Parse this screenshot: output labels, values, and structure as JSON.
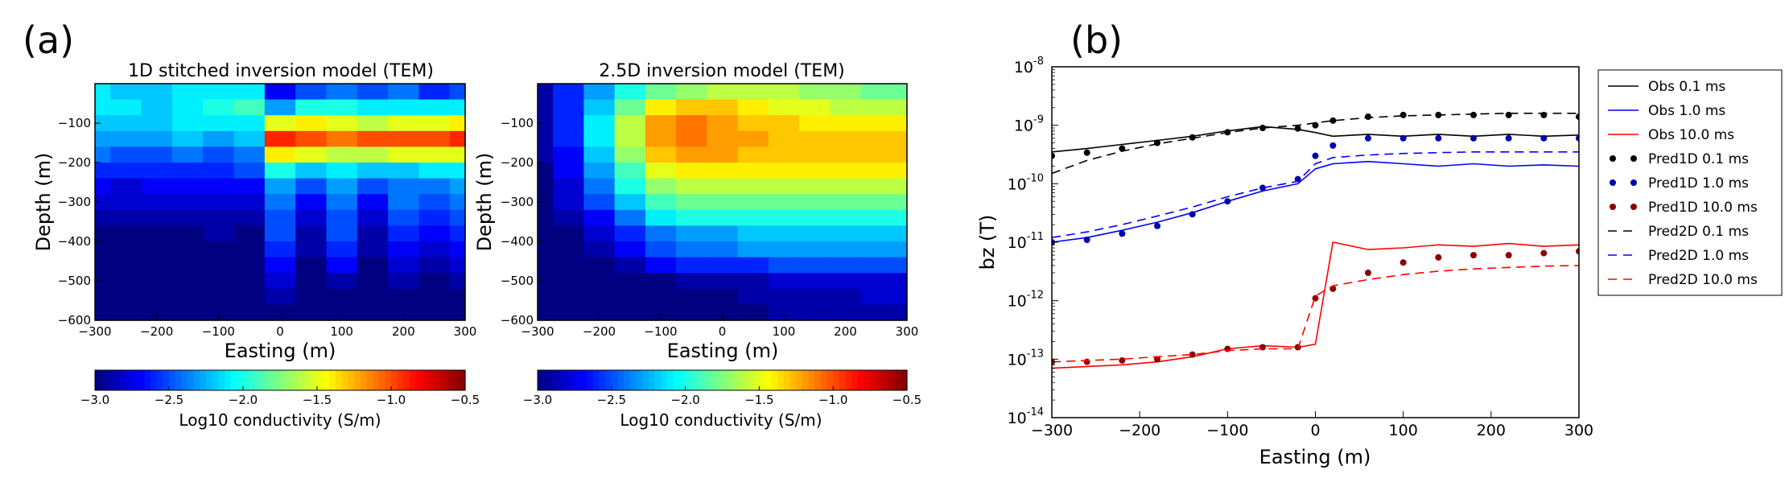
{
  "panel_labels": [
    "(a)",
    "(b)"
  ],
  "chart_data": [
    {
      "type": "heatmap",
      "panel": "(a)",
      "title": "1D stitched inversion model (TEM)",
      "xlabel": "Easting (m)",
      "ylabel": "Depth (m)",
      "xlim": [
        -300,
        300
      ],
      "ylim": [
        -600,
        0
      ],
      "xticks": [
        "−300",
        "−200",
        "−100",
        "0",
        "100",
        "200",
        "300"
      ],
      "yticks": [
        "−100",
        "−200",
        "−300",
        "−400",
        "−500",
        "−600"
      ],
      "colorbar": {
        "label": "Log10 conductivity (S/m)",
        "range": [
          -3.0,
          -0.5
        ],
        "ticks": [
          "−3.0",
          "−2.5",
          "−2.0",
          "−1.5",
          "−1.0",
          "−0.5"
        ],
        "colormap": "jet"
      },
      "depth_bins_m": [
        -20,
        -60,
        -100,
        -140,
        -180,
        -220,
        -260,
        -300,
        -340,
        -380,
        -420,
        -460,
        -500,
        -540,
        -580
      ],
      "x_bins_m": [
        -300,
        -250,
        -200,
        -150,
        -100,
        -50,
        0,
        50,
        100,
        150,
        200,
        250,
        300
      ],
      "log10_conductivity": [
        [
          -2.1,
          -2.2,
          -2.2,
          -2.1,
          -2.1,
          -2.1,
          -2.7,
          -2.5,
          -2.4,
          -2.5,
          -2.4,
          -2.6,
          -2.5
        ],
        [
          -2.1,
          -2.1,
          -2.2,
          -2.1,
          -2.0,
          -1.9,
          -2.3,
          -2.0,
          -2.0,
          -2.1,
          -2.1,
          -2.1,
          -2.1
        ],
        [
          -2.2,
          -2.2,
          -2.2,
          -2.1,
          -2.1,
          -2.1,
          -1.5,
          -1.4,
          -1.5,
          -1.6,
          -1.5,
          -1.5,
          -1.4
        ],
        [
          -2.3,
          -2.3,
          -2.3,
          -2.2,
          -2.3,
          -2.2,
          -0.9,
          -1.0,
          -1.1,
          -1.0,
          -1.0,
          -1.0,
          -0.9
        ],
        [
          -2.4,
          -2.5,
          -2.5,
          -2.4,
          -2.5,
          -2.4,
          -1.4,
          -1.5,
          -1.6,
          -1.6,
          -1.5,
          -1.5,
          -1.5
        ],
        [
          -2.6,
          -2.6,
          -2.6,
          -2.6,
          -2.6,
          -2.5,
          -2.0,
          -2.2,
          -2.1,
          -2.2,
          -2.2,
          -2.1,
          -2.1
        ],
        [
          -2.7,
          -2.8,
          -2.7,
          -2.7,
          -2.7,
          -2.7,
          -2.3,
          -2.5,
          -2.3,
          -2.5,
          -2.4,
          -2.4,
          -2.3
        ],
        [
          -2.8,
          -2.8,
          -2.8,
          -2.8,
          -2.8,
          -2.8,
          -2.4,
          -2.7,
          -2.4,
          -2.7,
          -2.4,
          -2.5,
          -2.4
        ],
        [
          -2.9,
          -2.9,
          -2.9,
          -2.9,
          -2.9,
          -2.9,
          -2.5,
          -2.8,
          -2.5,
          -2.8,
          -2.5,
          -2.6,
          -2.5
        ],
        [
          -3.0,
          -3.0,
          -3.0,
          -3.0,
          -2.9,
          -3.0,
          -2.5,
          -2.9,
          -2.5,
          -2.9,
          -2.6,
          -2.7,
          -2.6
        ],
        [
          -3.0,
          -3.0,
          -3.0,
          -3.0,
          -3.0,
          -3.0,
          -2.6,
          -2.9,
          -2.6,
          -2.9,
          -2.7,
          -2.8,
          -2.7
        ],
        [
          -3.0,
          -3.0,
          -3.0,
          -3.0,
          -3.0,
          -3.0,
          -2.7,
          -3.0,
          -2.7,
          -3.0,
          -2.8,
          -2.9,
          -2.8
        ],
        [
          -3.0,
          -3.0,
          -3.0,
          -3.0,
          -3.0,
          -3.0,
          -2.8,
          -3.0,
          -2.9,
          -3.0,
          -2.9,
          -3.0,
          -2.9
        ],
        [
          -3.0,
          -3.0,
          -3.0,
          -3.0,
          -3.0,
          -3.0,
          -2.9,
          -3.0,
          -3.0,
          -3.0,
          -3.0,
          -3.0,
          -3.0
        ],
        [
          -3.0,
          -3.0,
          -3.0,
          -3.0,
          -3.0,
          -3.0,
          -3.0,
          -3.0,
          -3.0,
          -3.0,
          -3.0,
          -3.0,
          -3.0
        ]
      ]
    },
    {
      "type": "heatmap",
      "panel": "(a)",
      "title": "2.5D inversion model (TEM)",
      "xlabel": "Easting (m)",
      "ylabel": "Depth (m)",
      "xlim": [
        -300,
        300
      ],
      "ylim": [
        -600,
        0
      ],
      "xticks": [
        "−300",
        "−200",
        "−100",
        "0",
        "100",
        "200",
        "300"
      ],
      "yticks": [
        "−100",
        "−200",
        "−300",
        "−400",
        "−500",
        "−600"
      ],
      "colorbar": {
        "label": "Log10 conductivity (S/m)",
        "range": [
          -3.0,
          -0.5
        ],
        "ticks": [
          "−3.0",
          "−2.5",
          "−2.0",
          "−1.5",
          "−1.0",
          "−0.5"
        ],
        "colormap": "jet"
      },
      "depth_bins_m": [
        -20,
        -60,
        -100,
        -140,
        -180,
        -220,
        -260,
        -300,
        -340,
        -380,
        -420,
        -460,
        -500,
        -540,
        -580
      ],
      "x_bins_m": [
        -300,
        -250,
        -200,
        -150,
        -100,
        -50,
        0,
        50,
        100,
        150,
        200,
        250,
        300
      ],
      "log10_conductivity": [
        [
          -2.9,
          -2.6,
          -2.3,
          -2.0,
          -1.8,
          -1.7,
          -1.6,
          -1.6,
          -1.6,
          -1.7,
          -1.7,
          -1.8,
          -1.8
        ],
        [
          -2.9,
          -2.6,
          -2.2,
          -1.8,
          -1.4,
          -1.3,
          -1.3,
          -1.4,
          -1.5,
          -1.5,
          -1.6,
          -1.6,
          -1.6
        ],
        [
          -2.9,
          -2.6,
          -2.1,
          -1.6,
          -1.2,
          -1.1,
          -1.2,
          -1.3,
          -1.3,
          -1.4,
          -1.4,
          -1.4,
          -1.4
        ],
        [
          -2.9,
          -2.6,
          -2.1,
          -1.6,
          -1.2,
          -1.1,
          -1.2,
          -1.2,
          -1.3,
          -1.3,
          -1.3,
          -1.3,
          -1.3
        ],
        [
          -2.9,
          -2.7,
          -2.2,
          -1.7,
          -1.3,
          -1.2,
          -1.2,
          -1.3,
          -1.3,
          -1.3,
          -1.3,
          -1.3,
          -1.3
        ],
        [
          -3.0,
          -2.7,
          -2.3,
          -1.9,
          -1.5,
          -1.4,
          -1.4,
          -1.4,
          -1.4,
          -1.4,
          -1.4,
          -1.4,
          -1.4
        ],
        [
          -3.0,
          -2.8,
          -2.4,
          -2.0,
          -1.7,
          -1.6,
          -1.6,
          -1.6,
          -1.6,
          -1.6,
          -1.6,
          -1.6,
          -1.6
        ],
        [
          -3.0,
          -2.8,
          -2.5,
          -2.2,
          -1.9,
          -1.8,
          -1.8,
          -1.8,
          -1.8,
          -1.8,
          -1.8,
          -1.8,
          -1.8
        ],
        [
          -3.0,
          -2.9,
          -2.7,
          -2.4,
          -2.1,
          -2.0,
          -2.0,
          -2.0,
          -2.0,
          -2.0,
          -2.0,
          -2.0,
          -2.0
        ],
        [
          -3.0,
          -3.0,
          -2.8,
          -2.6,
          -2.4,
          -2.3,
          -2.3,
          -2.2,
          -2.2,
          -2.2,
          -2.2,
          -2.2,
          -2.2
        ],
        [
          -3.0,
          -3.0,
          -2.9,
          -2.7,
          -2.5,
          -2.4,
          -2.4,
          -2.3,
          -2.3,
          -2.3,
          -2.3,
          -2.3,
          -2.3
        ],
        [
          -3.0,
          -3.0,
          -3.0,
          -2.9,
          -2.7,
          -2.6,
          -2.6,
          -2.6,
          -2.5,
          -2.5,
          -2.5,
          -2.5,
          -2.5
        ],
        [
          -3.0,
          -3.0,
          -3.0,
          -3.0,
          -3.0,
          -2.9,
          -2.9,
          -2.9,
          -2.8,
          -2.8,
          -2.8,
          -2.8,
          -2.8
        ],
        [
          -3.0,
          -3.0,
          -3.0,
          -3.0,
          -3.0,
          -3.0,
          -3.0,
          -2.9,
          -2.9,
          -2.9,
          -2.9,
          -2.8,
          -2.8
        ],
        [
          -3.0,
          -3.0,
          -3.0,
          -3.0,
          -3.0,
          -3.0,
          -3.0,
          -3.0,
          -2.9,
          -2.9,
          -2.9,
          -2.9,
          -2.9
        ]
      ]
    },
    {
      "type": "line",
      "panel": "(b)",
      "xlabel": "Easting (m)",
      "ylabel": "bz (T)",
      "xlim": [
        -300,
        300
      ],
      "ylim": [
        1e-14,
        1e-08
      ],
      "yscale": "log",
      "xticks": [
        "−300",
        "−200",
        "−100",
        "0",
        "100",
        "200",
        "300"
      ],
      "yticks": [
        {
          "base": "10",
          "exp": "-8"
        },
        {
          "base": "10",
          "exp": "-9"
        },
        {
          "base": "10",
          "exp": "-10"
        },
        {
          "base": "10",
          "exp": "-11"
        },
        {
          "base": "10",
          "exp": "-12"
        },
        {
          "base": "10",
          "exp": "-13"
        },
        {
          "base": "10",
          "exp": "-14"
        }
      ],
      "legend_position": "outside-right",
      "x": [
        -300,
        -260,
        -220,
        -180,
        -140,
        -100,
        -60,
        -20,
        0,
        20,
        60,
        100,
        140,
        180,
        220,
        260,
        300
      ],
      "series": [
        {
          "name": "Obs 0.1 ms",
          "style": "solid",
          "color": "#000000",
          "values": [
            3.5e-10,
            4e-10,
            4.7e-10,
            5.5e-10,
            6.5e-10,
            8e-10,
            9.5e-10,
            8.5e-10,
            7.5e-10,
            6.5e-10,
            7e-10,
            6.5e-10,
            7e-10,
            6.5e-10,
            7e-10,
            6.5e-10,
            6.8e-10
          ]
        },
        {
          "name": "Obs 1.0 ms",
          "style": "solid",
          "color": "#0000ff",
          "values": [
            1e-11,
            1.2e-11,
            1.6e-11,
            2.2e-11,
            3.2e-11,
            5e-11,
            7.5e-11,
            1e-10,
            1.8e-10,
            2.2e-10,
            2.4e-10,
            2.2e-10,
            2e-10,
            2.2e-10,
            2e-10,
            2.1e-10,
            2e-10
          ]
        },
        {
          "name": "Obs 10.0 ms",
          "style": "solid",
          "color": "#ff0000",
          "values": [
            7e-14,
            7.5e-14,
            8e-14,
            9e-14,
            1.1e-13,
            1.5e-13,
            1.7e-13,
            1.6e-13,
            1.8e-13,
            1e-11,
            7.5e-12,
            8e-12,
            9e-12,
            8.5e-12,
            9.5e-12,
            8.5e-12,
            9e-12
          ]
        },
        {
          "name": "Pred1D 0.1 ms",
          "style": "dots",
          "color": "#000000",
          "values": [
            3e-10,
            3.4e-10,
            4e-10,
            5e-10,
            6.2e-10,
            7.6e-10,
            9e-10,
            8.8e-10,
            1e-09,
            1.2e-09,
            1.4e-09,
            1.5e-09,
            1.5e-09,
            1.5e-09,
            1.5e-09,
            1.5e-09,
            1.4e-09
          ]
        },
        {
          "name": "Pred1D 1.0 ms",
          "style": "dots",
          "color": "#0000aa",
          "values": [
            1e-11,
            1.1e-11,
            1.4e-11,
            1.9e-11,
            3e-11,
            5e-11,
            8.5e-11,
            1.2e-10,
            3e-10,
            4.5e-10,
            6e-10,
            6e-10,
            6e-10,
            6e-10,
            6e-10,
            6e-10,
            6e-10
          ]
        },
        {
          "name": "Pred1D 10.0 ms",
          "style": "dots",
          "color": "#8b0000",
          "values": [
            9e-14,
            9e-14,
            9.5e-14,
            1e-13,
            1.2e-13,
            1.5e-13,
            1.6e-13,
            1.6e-13,
            1.1e-12,
            1.6e-12,
            3e-12,
            4.5e-12,
            5.5e-12,
            6e-12,
            6e-12,
            6.5e-12,
            7e-12
          ]
        },
        {
          "name": "Pred2D 0.1 ms",
          "style": "dashed",
          "color": "#000000",
          "values": [
            1.5e-10,
            2.5e-10,
            3.6e-10,
            4.8e-10,
            6e-10,
            7.5e-10,
            9e-10,
            1e-09,
            1.1e-09,
            1.2e-09,
            1.35e-09,
            1.45e-09,
            1.5e-09,
            1.55e-09,
            1.6e-09,
            1.6e-09,
            1.6e-09
          ]
        },
        {
          "name": "Pred2D 1.0 ms",
          "style": "dashed",
          "color": "#0000ff",
          "values": [
            1.2e-11,
            1.5e-11,
            2e-11,
            2.8e-11,
            4e-11,
            6e-11,
            8.5e-11,
            1.1e-10,
            2.2e-10,
            2.8e-10,
            3.1e-10,
            3.3e-10,
            3.4e-10,
            3.5e-10,
            3.5e-10,
            3.5e-10,
            3.5e-10
          ]
        },
        {
          "name": "Pred2D 10.0 ms",
          "style": "dashed",
          "color": "#ff0000",
          "values": [
            9e-14,
            9.5e-14,
            1e-13,
            1.1e-13,
            1.2e-13,
            1.4e-13,
            1.5e-13,
            1.5e-13,
            1.2e-12,
            1.8e-12,
            2.3e-12,
            2.8e-12,
            3.2e-12,
            3.5e-12,
            3.7e-12,
            3.9e-12,
            4e-12
          ]
        }
      ]
    }
  ]
}
